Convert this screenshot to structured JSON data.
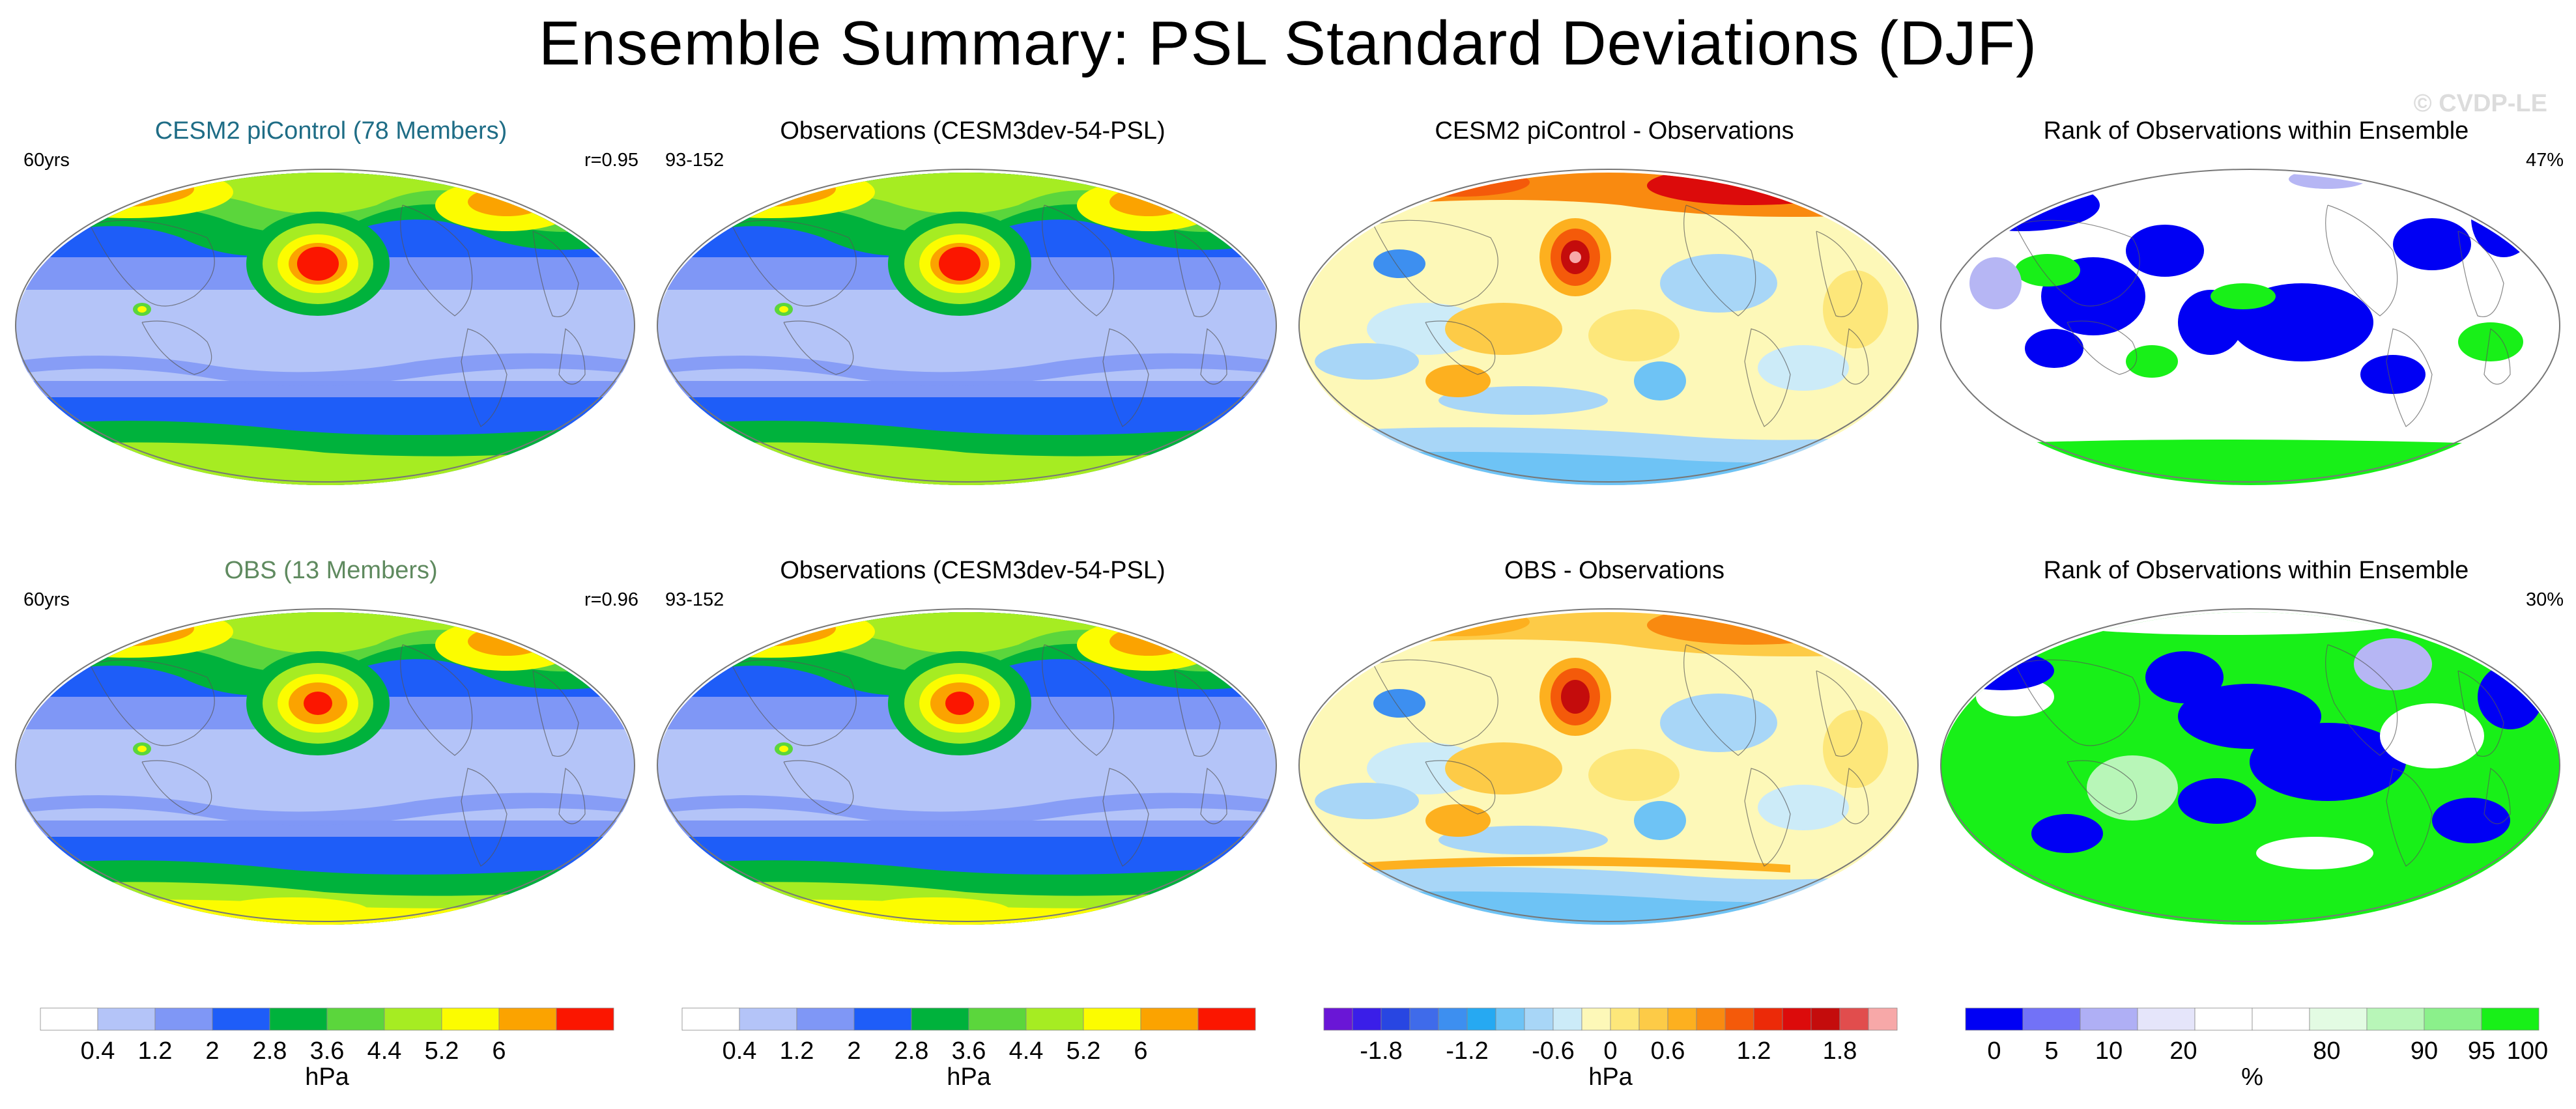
{
  "title": "Ensemble Summary: PSL Standard Deviations (DJF)",
  "watermark": "© CVDP-LE",
  "colors": {
    "ensemble_title": "#1f6d86",
    "obs_title": "#5f8a5f"
  },
  "panels": [
    {
      "title": "CESM2 piControl (78 Members)",
      "left_text": "60yrs",
      "right_text": "r=0.95",
      "map_type": "stddev"
    },
    {
      "title": "Observations (CESM3dev-54-PSL)",
      "left_text": "93-152",
      "right_text": "",
      "map_type": "stddev"
    },
    {
      "title": "CESM2 piControl - Observations",
      "left_text": "",
      "right_text": "",
      "map_type": "diff"
    },
    {
      "title": "Rank of Observations within Ensemble",
      "left_text": "",
      "right_text": "47%",
      "map_type": "rank"
    },
    {
      "title": "OBS (13 Members)",
      "left_text": "60yrs",
      "right_text": "r=0.96",
      "map_type": "stddev"
    },
    {
      "title": "Observations (CESM3dev-54-PSL)",
      "left_text": "93-152",
      "right_text": "",
      "map_type": "stddev"
    },
    {
      "title": "OBS - Observations",
      "left_text": "",
      "right_text": "",
      "map_type": "diff"
    },
    {
      "title": "Rank of Observations within Ensemble",
      "left_text": "",
      "right_text": "30%",
      "map_type": "rank"
    }
  ],
  "colorbars": [
    {
      "unit": "hPa",
      "colors": [
        "#ffffff",
        "#b4c4f8",
        "#7f97f6",
        "#1e5df8",
        "#00b23c",
        "#5bd63c",
        "#a6ec22",
        "#fcfc00",
        "#fba300",
        "#fb1600"
      ],
      "tick_labels": [
        "0.4",
        "1.2",
        "2",
        "2.8",
        "3.6",
        "4.4",
        "5.2",
        "6"
      ],
      "tick_positions": [
        1,
        2,
        3,
        4,
        5,
        6,
        7,
        8
      ]
    },
    {
      "unit": "hPa",
      "colors": [
        "#ffffff",
        "#b4c4f8",
        "#7f97f6",
        "#1e5df8",
        "#00b23c",
        "#5bd63c",
        "#a6ec22",
        "#fcfc00",
        "#fba300",
        "#fb1600"
      ],
      "tick_labels": [
        "0.4",
        "1.2",
        "2",
        "2.8",
        "3.6",
        "4.4",
        "5.2",
        "6"
      ],
      "tick_positions": [
        1,
        2,
        3,
        4,
        5,
        6,
        7,
        8
      ]
    },
    {
      "unit": "hPa",
      "colors": [
        "#6a16d6",
        "#3a1ee8",
        "#2846e2",
        "#3f6bea",
        "#3d8ff0",
        "#26a9f2",
        "#6ec3f5",
        "#a8d6f7",
        "#ccebf8",
        "#fdf8b8",
        "#fde77a",
        "#fdcb47",
        "#fdb01f",
        "#f98a10",
        "#f45a0a",
        "#ec2a08",
        "#dc0b0b",
        "#c40c0c",
        "#e14d4d",
        "#f7a8a8"
      ],
      "tick_labels": [
        "-1.8",
        "-1.2",
        "-0.6",
        "0",
        "0.6",
        "1.2",
        "1.8"
      ],
      "tick_positions": [
        2,
        5,
        8,
        10,
        12,
        15,
        18
      ]
    },
    {
      "unit": "%",
      "colors": [
        "#0000f4",
        "#7272f7",
        "#afaff5",
        "#e5e5fa",
        "#ffffff",
        "#ffffff",
        "#e3fbe3",
        "#b8f6b8",
        "#8bf08b",
        "#18f018"
      ],
      "tick_labels": [
        "0",
        "5",
        "10",
        "20",
        "80",
        "90",
        "95",
        "100"
      ],
      "tick_positions": [
        0.5,
        1.5,
        2.5,
        3.8,
        6.3,
        8,
        9,
        9.8
      ]
    }
  ]
}
